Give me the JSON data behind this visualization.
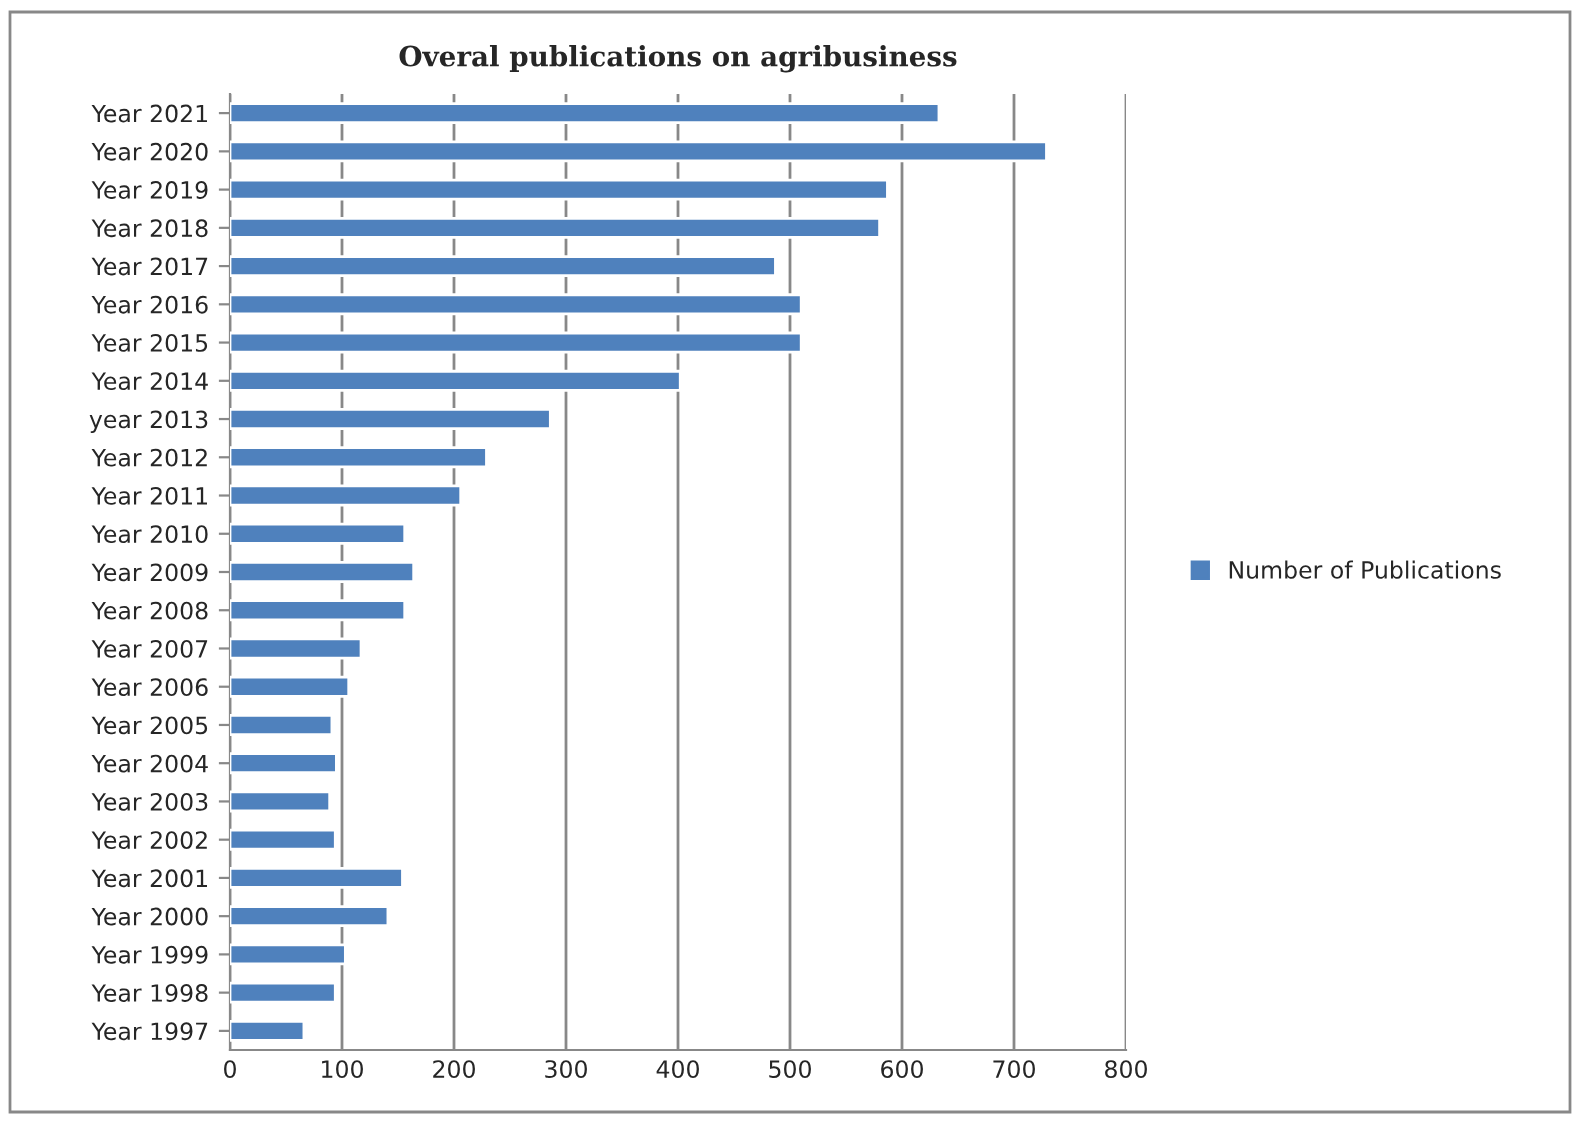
{
  "chart_data": {
    "type": "bar",
    "orientation": "horizontal",
    "title": "Overal publications on agribusiness",
    "categories": [
      "Year 2021",
      "Year 2020",
      "Year 2019",
      "Year 2018",
      "Year 2017",
      "Year 2016",
      "Year 2015",
      "Year 2014",
      "year 2013",
      "Year 2012",
      "Year 2011",
      "Year 2010",
      "Year 2009",
      "Year 2008",
      "Year 2007",
      "Year 2006",
      "Year 2005",
      "Year 2004",
      "Year 2003",
      "Year 2002",
      "Year 2001",
      "Year 2000",
      "Year 1999",
      "Year 1998",
      "Year 1997"
    ],
    "series": [
      {
        "name": "Number of Publications",
        "color": "#4f81bd",
        "values": [
          633,
          729,
          587,
          580,
          487,
          510,
          510,
          402,
          286,
          229,
          206,
          156,
          164,
          156,
          117,
          106,
          91,
          95,
          89,
          94,
          154,
          141,
          103,
          94,
          66
        ]
      }
    ],
    "xlim": [
      0,
      800
    ],
    "xticks": [
      0,
      100,
      200,
      300,
      400,
      500,
      600,
      700,
      800
    ],
    "grid": "x",
    "legend": "right"
  }
}
